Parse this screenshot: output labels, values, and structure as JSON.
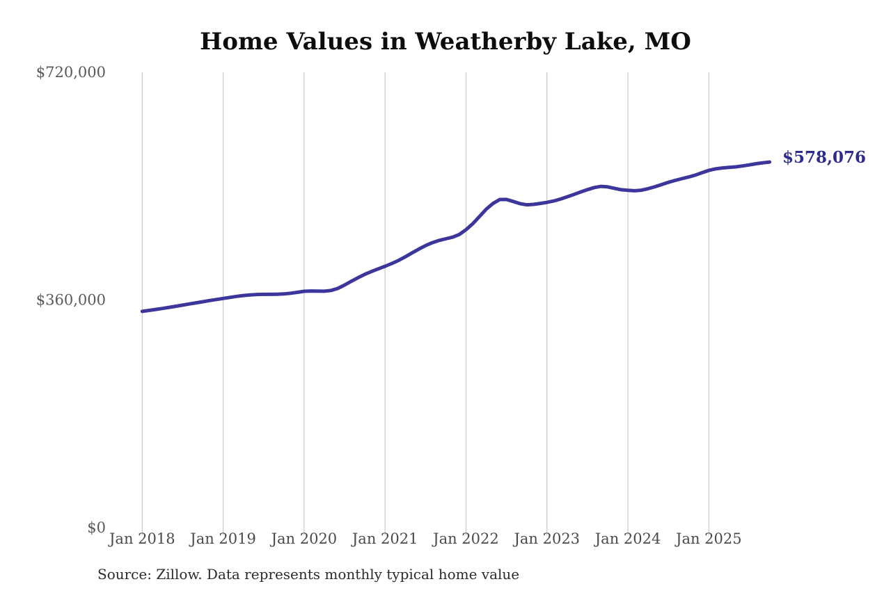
{
  "chart_data": {
    "type": "line",
    "title": "Home Values in Weatherby Lake, MO",
    "source": "Source: Zillow. Data represents monthly typical home value",
    "end_label": "$578,076",
    "latest_value": 578076,
    "series_name": "Monthly typical home value",
    "line_color": "#3c359b",
    "end_label_color": "#2e2c8a",
    "gridline_color": "#cacaca",
    "x_tick_color": "#4a4a4a",
    "y_tick_color": "#57595b",
    "x_start": "Jan 2018",
    "x_end": "Oct 2025",
    "x_tick_labels": [
      "Jan 2018",
      "Jan 2019",
      "Jan 2020",
      "Jan 2021",
      "Jan 2022",
      "Jan 2023",
      "Jan 2024",
      "Jan 2025"
    ],
    "x_tick_month_interval": 12,
    "y_ticks": [
      {
        "value": 0,
        "label": "$0"
      },
      {
        "value": 360000,
        "label": "$360,000"
      },
      {
        "value": 720000,
        "label": "$720,000"
      }
    ],
    "ylim": [
      0,
      720000
    ],
    "grid": "vertical-only",
    "legend": "none",
    "values": [
      342000,
      343500,
      345000,
      346600,
      348300,
      350100,
      351900,
      353700,
      355500,
      357300,
      359100,
      360800,
      362400,
      364100,
      365700,
      367000,
      368000,
      368700,
      368900,
      368900,
      369100,
      369600,
      370700,
      372100,
      373700,
      374200,
      374100,
      373900,
      375100,
      378300,
      383600,
      389600,
      395300,
      400600,
      405100,
      409300,
      413300,
      417700,
      422600,
      428300,
      434400,
      440400,
      446000,
      450600,
      454100,
      456700,
      459300,
      463600,
      471100,
      480600,
      492100,
      503600,
      512600,
      518800,
      519000,
      515800,
      512300,
      510500,
      511100,
      512700,
      514300,
      516500,
      519500,
      523100,
      526900,
      530800,
      534400,
      537700,
      539600,
      538900,
      536500,
      534300,
      533500,
      532700,
      533600,
      536000,
      539100,
      542500,
      546000,
      549100,
      551800,
      554400,
      557500,
      561300,
      564900,
      567300,
      568700,
      569600,
      570500,
      571900,
      573600,
      575400,
      576900,
      578076
    ]
  }
}
